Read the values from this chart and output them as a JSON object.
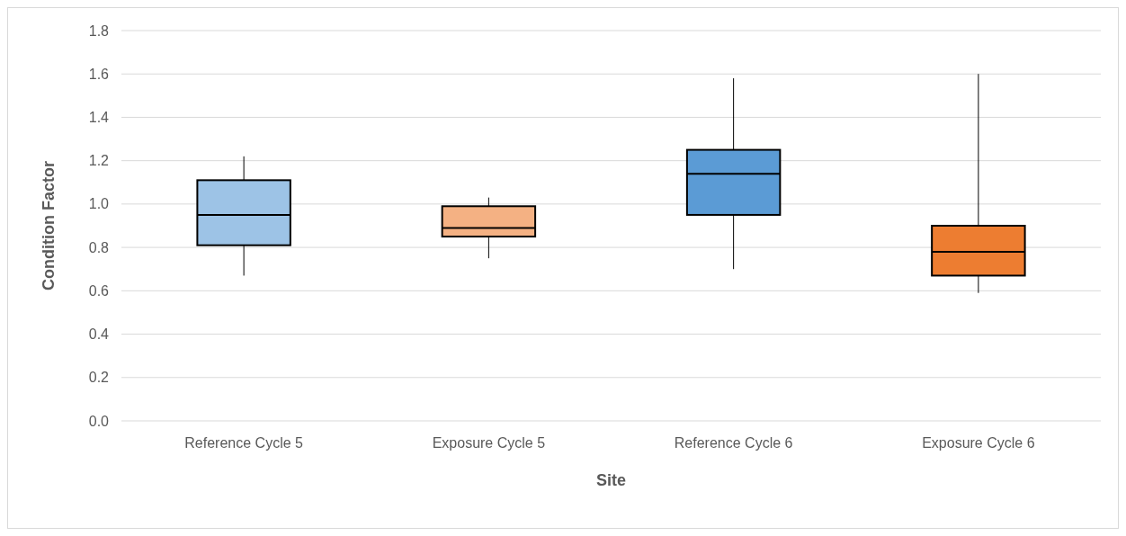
{
  "chart_data": {
    "type": "box",
    "xlabel": "Site",
    "ylabel": "Condition Factor",
    "categories": [
      "Reference Cycle 5",
      "Exposure Cycle 5",
      "Reference Cycle 6",
      "Exposure Cycle 6"
    ],
    "colors": [
      "#9dc3e6",
      "#f4b183",
      "#5b9bd5",
      "#ed7d31"
    ],
    "boxes": [
      {
        "low": 0.67,
        "q1": 0.81,
        "median": 0.95,
        "q3": 1.11,
        "high": 1.22
      },
      {
        "low": 0.75,
        "q1": 0.85,
        "median": 0.89,
        "q3": 0.99,
        "high": 1.03
      },
      {
        "low": 0.7,
        "q1": 0.95,
        "median": 1.14,
        "q3": 1.25,
        "high": 1.58
      },
      {
        "low": 0.59,
        "q1": 0.67,
        "median": 0.78,
        "q3": 0.9,
        "high": 1.6
      }
    ],
    "ylim": [
      0,
      1.8
    ],
    "yticks": [
      {
        "value": 0,
        "label": "0.0"
      },
      {
        "value": 0.2,
        "label": "0.2"
      },
      {
        "value": 0.4,
        "label": "0.4"
      },
      {
        "value": 0.6,
        "label": "0.6"
      },
      {
        "value": 0.8,
        "label": "0.8"
      },
      {
        "value": 1,
        "label": "1.0"
      },
      {
        "value": 1.2,
        "label": "1.2"
      },
      {
        "value": 1.4,
        "label": "1.4"
      },
      {
        "value": 1.6,
        "label": "1.6"
      },
      {
        "value": 1.8,
        "label": "1.8"
      }
    ],
    "grid": "y"
  }
}
